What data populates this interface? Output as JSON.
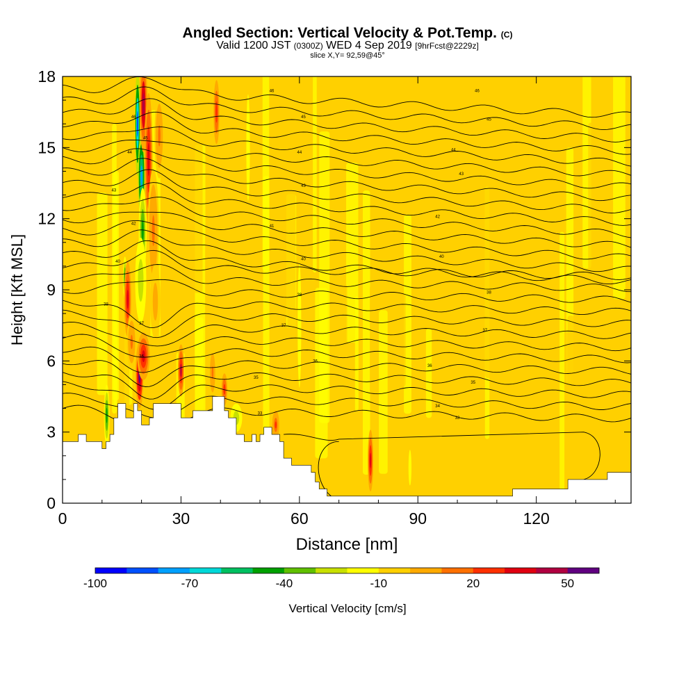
{
  "header": {
    "title": "Angled Section: Vertical Velocity & Pot.Temp.",
    "title_unit": "(C)",
    "valid_prefix": "Valid 1200 JST",
    "valid_zulu": "(0300Z)",
    "valid_date": "WED 4 Sep 2019",
    "forecast": "[9hrFcst@2229z]",
    "slice": "slice X,Y= 92,59@45°"
  },
  "chart_data": {
    "type": "heatmap",
    "xlabel": "Distance [nm]",
    "ylabel": "Height [Kft MSL]",
    "xlim": [
      0,
      144
    ],
    "ylim": [
      0,
      18
    ],
    "xticks": [
      "0",
      "30",
      "60",
      "90",
      "120"
    ],
    "yticks": [
      "0",
      "3",
      "6",
      "9",
      "12",
      "15",
      "18"
    ],
    "colorbar": {
      "label": "Vertical Velocity [cm/s]",
      "tick_labels": [
        "-100",
        "-70",
        "-40",
        "-10",
        "20",
        "50"
      ],
      "range": [
        -100,
        60
      ],
      "colors": [
        "#0000ff",
        "#0050ff",
        "#00a0ff",
        "#00d8d8",
        "#00c060",
        "#00a000",
        "#60c000",
        "#c8e000",
        "#ffff00",
        "#ffd000",
        "#ffaa00",
        "#ff7000",
        "#ff3000",
        "#e00010",
        "#b00040",
        "#600080"
      ]
    },
    "background_velocity": -8,
    "terrain": [
      [
        0,
        2.6
      ],
      [
        4,
        2.6
      ],
      [
        4,
        2.9
      ],
      [
        6,
        2.9
      ],
      [
        6,
        2.6
      ],
      [
        10,
        2.6
      ],
      [
        10,
        2.3
      ],
      [
        11,
        2.3
      ],
      [
        11,
        2.6
      ],
      [
        12,
        2.6
      ],
      [
        12,
        2.9
      ],
      [
        13,
        2.9
      ],
      [
        13,
        3.6
      ],
      [
        14,
        3.6
      ],
      [
        14,
        4.2
      ],
      [
        16,
        4.2
      ],
      [
        16,
        3.6
      ],
      [
        18,
        3.6
      ],
      [
        18,
        4.2
      ],
      [
        19,
        4.2
      ],
      [
        19,
        3.9
      ],
      [
        20,
        3.9
      ],
      [
        20,
        3.3
      ],
      [
        22,
        3.3
      ],
      [
        22,
        3.6
      ],
      [
        23,
        3.6
      ],
      [
        23,
        4.2
      ],
      [
        30,
        4.2
      ],
      [
        30,
        3.6
      ],
      [
        33,
        3.6
      ],
      [
        33,
        3.9
      ],
      [
        38,
        3.9
      ],
      [
        38,
        4.5
      ],
      [
        41,
        4.5
      ],
      [
        41,
        3.9
      ],
      [
        42,
        3.9
      ],
      [
        42,
        3.6
      ],
      [
        44,
        3.6
      ],
      [
        44,
        2.9
      ],
      [
        46,
        2.9
      ],
      [
        46,
        2.6
      ],
      [
        48,
        2.6
      ],
      [
        48,
        2.9
      ],
      [
        49,
        2.9
      ],
      [
        49,
        2.6
      ],
      [
        50,
        2.6
      ],
      [
        50,
        2.9
      ],
      [
        51,
        2.9
      ],
      [
        51,
        3.2
      ],
      [
        53,
        3.2
      ],
      [
        53,
        2.9
      ],
      [
        55,
        2.9
      ],
      [
        55,
        2.6
      ],
      [
        56,
        2.6
      ],
      [
        56,
        1.9
      ],
      [
        58,
        1.9
      ],
      [
        58,
        1.6
      ],
      [
        63,
        1.6
      ],
      [
        63,
        1.3
      ],
      [
        64,
        1.3
      ],
      [
        64,
        0.9
      ],
      [
        65,
        0.9
      ],
      [
        65,
        0.6
      ],
      [
        67,
        0.6
      ],
      [
        67,
        0.3
      ],
      [
        114,
        0.3
      ],
      [
        114,
        0.6
      ],
      [
        128,
        0.6
      ],
      [
        128,
        1.0
      ],
      [
        138,
        1.0
      ],
      [
        138,
        1.3
      ],
      [
        144,
        1.3
      ],
      [
        144,
        0
      ]
    ],
    "updrafts": [
      {
        "x": 20.5,
        "y": 16.8,
        "w": 1.0,
        "h": 2.0,
        "v": 45
      },
      {
        "x": 21.8,
        "y": 14.5,
        "w": 1.0,
        "h": 2.8,
        "v": 35
      },
      {
        "x": 23,
        "y": 11.5,
        "w": 1.4,
        "h": 2.6,
        "v": 10
      },
      {
        "x": 16.5,
        "y": 8.6,
        "w": 0.9,
        "h": 1.6,
        "v": 30
      },
      {
        "x": 19.5,
        "y": 5.4,
        "w": 1.0,
        "h": 1.4,
        "v": 55
      },
      {
        "x": 20.5,
        "y": 6.2,
        "w": 1.6,
        "h": 1.0,
        "v": 30
      },
      {
        "x": 30,
        "y": 5.6,
        "w": 0.8,
        "h": 1.1,
        "v": 40
      },
      {
        "x": 41,
        "y": 4.8,
        "w": 1.0,
        "h": 0.9,
        "v": 20
      },
      {
        "x": 54,
        "y": 3.3,
        "w": 0.9,
        "h": 0.6,
        "v": 25
      },
      {
        "x": 78,
        "y": 1.8,
        "w": 0.7,
        "h": 1.3,
        "v": 30
      },
      {
        "x": 39,
        "y": 16.5,
        "w": 1.0,
        "h": 1.8,
        "v": 20
      },
      {
        "x": 38,
        "y": 5.5,
        "w": 0.9,
        "h": 1.1,
        "v": 15
      },
      {
        "x": 17.5,
        "y": 6.8,
        "w": 1.2,
        "h": 1.2,
        "v": 15
      },
      {
        "x": 23.5,
        "y": 8.5,
        "w": 1.3,
        "h": 1.6,
        "v": 5
      },
      {
        "x": 24.5,
        "y": 15.5,
        "w": 1.2,
        "h": 1.8,
        "v": 10
      }
    ],
    "downdrafts": [
      {
        "x": 19,
        "y": 16.0,
        "w": 0.7,
        "h": 2.2,
        "v": -90
      },
      {
        "x": 20,
        "y": 13.8,
        "w": 0.9,
        "h": 1.8,
        "v": -75
      },
      {
        "x": 20.3,
        "y": 11.5,
        "w": 1.0,
        "h": 1.8,
        "v": -48
      },
      {
        "x": 19.8,
        "y": 9.4,
        "w": 1.4,
        "h": 1.8,
        "v": -28
      },
      {
        "x": 11.2,
        "y": 3.7,
        "w": 0.7,
        "h": 1.3,
        "v": -42
      },
      {
        "x": 15.8,
        "y": 9.5,
        "w": 0.5,
        "h": 0.9,
        "v": -45
      },
      {
        "x": 44,
        "y": 3.6,
        "w": 1.5,
        "h": 0.6,
        "v": -30
      },
      {
        "x": 60,
        "y": 7.5,
        "w": 0.6,
        "h": 3.5,
        "v": -15
      },
      {
        "x": 47,
        "y": 15,
        "w": 0.6,
        "h": 3.0,
        "v": -15
      },
      {
        "x": 88,
        "y": 1.5,
        "w": 0.5,
        "h": 1.0,
        "v": -15
      }
    ],
    "theta_labels": [
      {
        "x": 53,
        "y": 17.4,
        "text": "46"
      },
      {
        "x": 61,
        "y": 16.3,
        "text": "45"
      },
      {
        "x": 60,
        "y": 14.8,
        "text": "44"
      },
      {
        "x": 61,
        "y": 13.4,
        "text": "43"
      },
      {
        "x": 13,
        "y": 13.2,
        "text": "43"
      },
      {
        "x": 53,
        "y": 11.7,
        "text": "41"
      },
      {
        "x": 18,
        "y": 11.8,
        "text": "42"
      },
      {
        "x": 61,
        "y": 10.3,
        "text": "40"
      },
      {
        "x": 14,
        "y": 10.2,
        "text": "40"
      },
      {
        "x": 60,
        "y": 8.8,
        "text": "38"
      },
      {
        "x": 11,
        "y": 8.4,
        "text": "38"
      },
      {
        "x": 56,
        "y": 7.5,
        "text": "37"
      },
      {
        "x": 64,
        "y": 6.0,
        "text": "36"
      },
      {
        "x": 49,
        "y": 5.3,
        "text": "35"
      },
      {
        "x": 50,
        "y": 3.8,
        "text": "33"
      },
      {
        "x": 105,
        "y": 17.4,
        "text": "46"
      },
      {
        "x": 108,
        "y": 16.2,
        "text": "45"
      },
      {
        "x": 99,
        "y": 14.9,
        "text": "44"
      },
      {
        "x": 101,
        "y": 13.9,
        "text": "43"
      },
      {
        "x": 95,
        "y": 12.1,
        "text": "42"
      },
      {
        "x": 96,
        "y": 10.4,
        "text": "40"
      },
      {
        "x": 108,
        "y": 8.9,
        "text": "38"
      },
      {
        "x": 107,
        "y": 7.3,
        "text": "37"
      },
      {
        "x": 93,
        "y": 5.8,
        "text": "36"
      },
      {
        "x": 104,
        "y": 5.1,
        "text": "35"
      },
      {
        "x": 95,
        "y": 4.1,
        "text": "34"
      },
      {
        "x": 100,
        "y": 3.6,
        "text": "33"
      },
      {
        "x": 20,
        "y": 6.2,
        "text": "36"
      },
      {
        "x": 20,
        "y": 7.6,
        "text": "37"
      },
      {
        "x": 18,
        "y": 16.3,
        "text": "46"
      },
      {
        "x": 21,
        "y": 15.4,
        "text": "45"
      },
      {
        "x": 17,
        "y": 14.8,
        "text": "44"
      }
    ]
  }
}
